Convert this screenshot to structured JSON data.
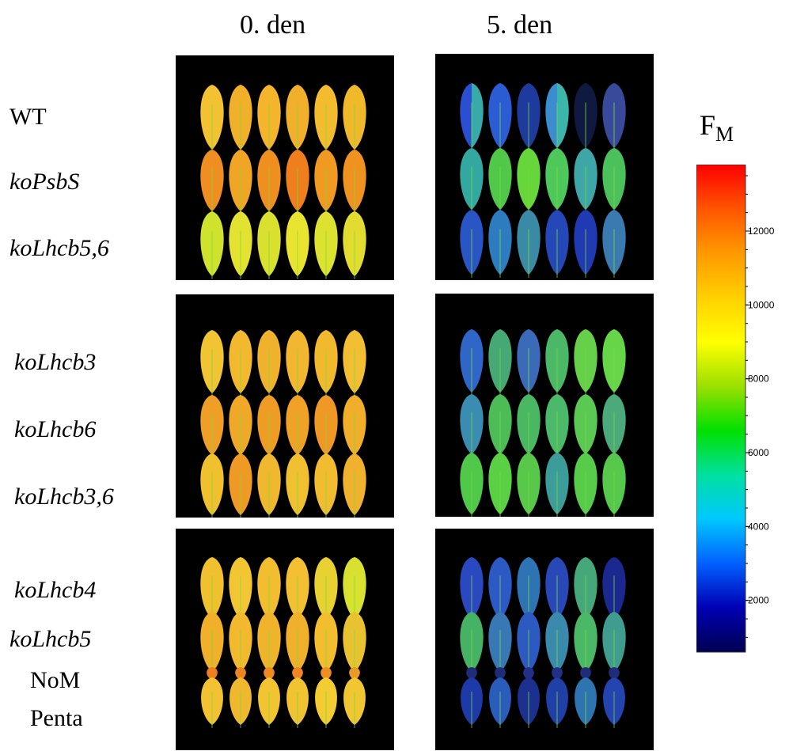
{
  "columns": [
    "0. den",
    "5. den"
  ],
  "row_labels": [
    {
      "text": "WT",
      "italic": false
    },
    {
      "text": "koPsbS",
      "italic": true
    },
    {
      "text": "koLhcb5,6",
      "italic": true
    },
    {
      "text": "koLhcb3",
      "italic": true
    },
    {
      "text": "koLhcb6",
      "italic": true
    },
    {
      "text": "koLhcb3,6",
      "italic": true
    },
    {
      "text": "koLhcb4",
      "italic": true
    },
    {
      "text": "koLhcb5",
      "italic": true
    },
    {
      "text": "NoM",
      "italic": false
    },
    {
      "text": "Penta",
      "italic": false
    }
  ],
  "colorbar": {
    "title": "F",
    "title_sub": "M",
    "ticks": [
      "2000",
      "4000",
      "6000",
      "8000",
      "10000",
      "12000"
    ],
    "tick_values": [
      2000,
      4000,
      6000,
      8000,
      10000,
      12000
    ],
    "range": [
      600,
      13800
    ],
    "colormap": [
      "#000050",
      "#0000b4",
      "#0060ff",
      "#00c8ff",
      "#00e0a0",
      "#00e000",
      "#9be000",
      "#ffff00",
      "#ffd000",
      "#ff9900",
      "#ff5500",
      "#ff0000"
    ]
  },
  "panels": [
    {
      "group": 1,
      "day": "0. den",
      "rows": [
        {
          "colors": [
            "#f3c232",
            "#f1b02a",
            "#f4b52c",
            "#f2af2c",
            "#f3bc2e",
            "#f0b92c"
          ]
        },
        {
          "colors": [
            "#ef8f22",
            "#f1a524",
            "#ef8f20",
            "#ee7f1c",
            "#f19a22",
            "#f0921f"
          ]
        },
        {
          "colors": [
            "#cfe22e",
            "#e4e230",
            "#d9e02e",
            "#e9e430",
            "#dde230",
            "#e2dc30"
          ]
        }
      ]
    },
    {
      "group": 1,
      "day": "5. den",
      "rows": [
        {
          "colors": [
            "#2a4fd0",
            "#2c5cd4",
            "#1d3a9c",
            "#3c8cd0",
            "#101a40",
            "#3a4a9a"
          ],
          "half": [
            true,
            false,
            false,
            true,
            false,
            false
          ]
        },
        {
          "colors": [
            "#33a8a0",
            "#52c84a",
            "#66d63a",
            "#4ec85a",
            "#3fa6a8",
            "#4cc05a"
          ]
        },
        {
          "colors": [
            "#2a55c4",
            "#2d7cc0",
            "#3a8aa6",
            "#2448b8",
            "#1f3ab2",
            "#3a7ab0"
          ]
        }
      ]
    },
    {
      "group": 2,
      "day": "0. den",
      "rows": [
        {
          "colors": [
            "#f0c432",
            "#f2b82e",
            "#f0b22c",
            "#f2b630",
            "#f1ba2e",
            "#f2be32"
          ]
        },
        {
          "colors": [
            "#ef9e26",
            "#f0a828",
            "#ef9c24",
            "#f0a226",
            "#ef9826",
            "#f0ae2a"
          ]
        },
        {
          "colors": [
            "#f0c02e",
            "#ee9a24",
            "#f0b82e",
            "#f1c030",
            "#f2bc30",
            "#f0b22e"
          ]
        }
      ]
    },
    {
      "group": 2,
      "day": "5. den",
      "rows": [
        {
          "colors": [
            "#2f66c8",
            "#46a874",
            "#3a6ab8",
            "#4ab866",
            "#66d04a",
            "#66d648"
          ]
        },
        {
          "colors": [
            "#3a8cb0",
            "#4cbc56",
            "#4ab862",
            "#4cb86a",
            "#5ac852",
            "#4caa7a"
          ]
        },
        {
          "colors": [
            "#50c84a",
            "#5ad044",
            "#58c84a",
            "#3c9c9a",
            "#56cc4a",
            "#56c84c"
          ]
        }
      ]
    },
    {
      "group": 3,
      "day": "0. den",
      "rows": [
        {
          "colors": [
            "#f0c02e",
            "#f2c632",
            "#f2be30",
            "#f2c032",
            "#e8d232",
            "#d8e030"
          ],
          "size": 1.0
        },
        {
          "colors": [
            "#f0b02a",
            "#f2b82e",
            "#f0b42c",
            "#f1b02c",
            "#f2be30",
            "#e9c232"
          ],
          "size": 1.0
        },
        {
          "colors": [
            "#ee7e1e",
            "#ee8420",
            "#ee8a22",
            "#ef8620",
            "#ef8e22",
            "#e99a26"
          ],
          "size": 0.28
        },
        {
          "colors": [
            "#f2c232",
            "#f0b82e",
            "#f2c432",
            "#f1c232",
            "#f2cc32",
            "#f0c632"
          ],
          "size": 0.85
        }
      ]
    },
    {
      "group": 3,
      "day": "5. den",
      "rows": [
        {
          "colors": [
            "#2a48c0",
            "#2c5ac4",
            "#2e74b4",
            "#2848b8",
            "#46a87a",
            "#1a2890"
          ],
          "size": 1.0
        },
        {
          "colors": [
            "#46b266",
            "#3878b4",
            "#2c5ac0",
            "#3a8aae",
            "#4ab866",
            "#3f9c8e"
          ],
          "size": 1.0
        },
        {
          "colors": [
            "#1e2c7a",
            "#1e2c7a",
            "#22308a",
            "#22308a",
            "#1e2c7a",
            "#1e2c7a"
          ],
          "size": 0.22
        },
        {
          "colors": [
            "#1e3aa8",
            "#2a5cbc",
            "#1c3090",
            "#2040a8",
            "#2e74b0",
            "#2444b0"
          ],
          "size": 0.85
        }
      ]
    }
  ]
}
